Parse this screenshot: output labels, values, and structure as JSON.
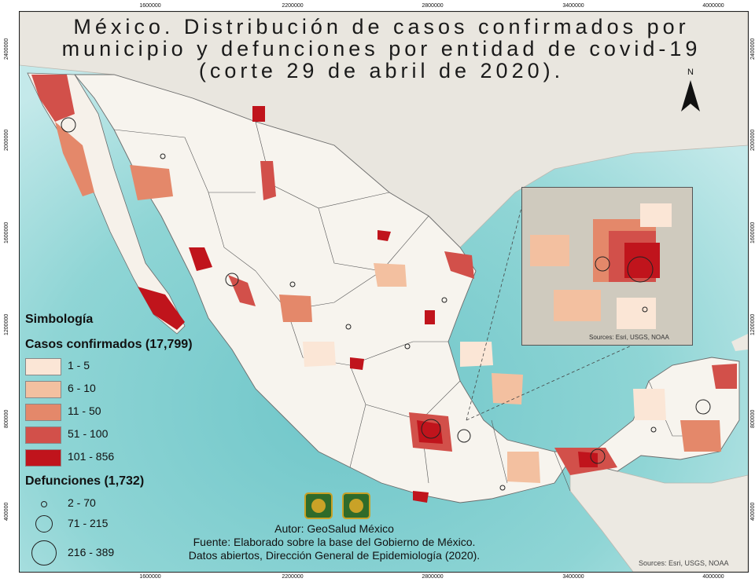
{
  "title": {
    "line1": "México. Distribución de casos confirmados por",
    "line2": "municipio y defunciones por entidad de covid-19",
    "line3": "(corte 29 de abril de 2020)."
  },
  "grid": {
    "x_labels": [
      "1600000",
      "2200000",
      "2800000",
      "3400000",
      "4000000"
    ],
    "y_labels": [
      "2400000",
      "2000000",
      "1600000",
      "1200000",
      "800000",
      "400000"
    ]
  },
  "north_arrow": {
    "label": "N",
    "icon": "north-arrow-icon"
  },
  "legend": {
    "heading": "Simbología",
    "cases_title": "Casos confirmados (17,799)",
    "cases_classes": [
      {
        "label": "1 - 5",
        "color": "#fbe6d6"
      },
      {
        "label": "6 - 10",
        "color": "#f3c0a0"
      },
      {
        "label": "11 - 50",
        "color": "#e4886a"
      },
      {
        "label": "51 - 100",
        "color": "#d2504a"
      },
      {
        "label": "101 - 856",
        "color": "#c0141c"
      }
    ],
    "deaths_title": "Defunciones (1,732)",
    "deaths_classes": [
      {
        "label": "2 - 70"
      },
      {
        "label": "71 - 215"
      },
      {
        "label": "216 - 389"
      }
    ]
  },
  "credits": {
    "author": "Autor: GeoSalud México",
    "source": "Fuente:  Elaborado sobre la base del Gobierno de México.",
    "data": "Datos abiertos, Dirección General de Epidemiología (2020)."
  },
  "basemap_credit": "Sources: Esri, USGS, NOAA",
  "inset_credit": "Sources: Esri, USGS, NOAA",
  "colors": {
    "sea": "#7fcfcf",
    "deep_sea": "#a9dde0",
    "land": "#f7f5f0",
    "outside_land": "#e6e2da"
  }
}
